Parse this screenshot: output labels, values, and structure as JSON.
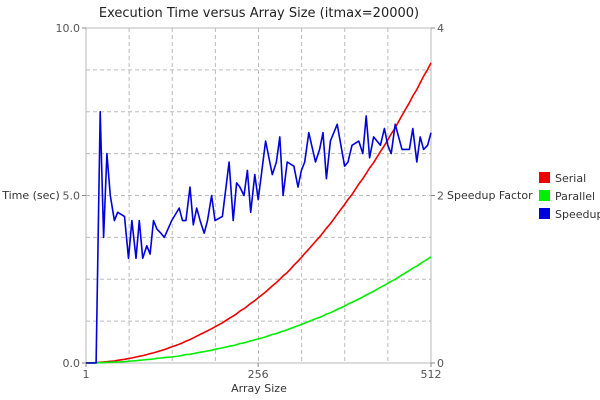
{
  "chart_data": {
    "type": "line",
    "title": "Execution Time versus Array Size (itmax=20000)",
    "xlabel": "Array Size",
    "ylabel_left": "Time (sec)",
    "ylabel_right": "Speedup Factor",
    "xlim": [
      1,
      512
    ],
    "ylim_left": [
      0,
      10
    ],
    "ylim_right": [
      0,
      4
    ],
    "x_ticks": [
      "1",
      "256",
      "512"
    ],
    "y_ticks_left": [
      "0.0",
      "5.0",
      "10.0"
    ],
    "y_ticks_right": [
      "0",
      "2",
      "4"
    ],
    "grid": true,
    "legend_position": "right",
    "x": [
      1,
      16,
      22,
      27,
      32,
      37,
      43,
      48,
      58,
      64,
      69,
      75,
      80,
      85,
      91,
      96,
      101,
      106,
      112,
      117,
      128,
      139,
      144,
      149,
      155,
      160,
      165,
      170,
      176,
      181,
      187,
      192,
      203,
      213,
      219,
      224,
      229,
      235,
      240,
      245,
      251,
      256,
      267,
      277,
      283,
      288,
      293,
      299,
      309,
      315,
      320,
      325,
      331,
      341,
      347,
      352,
      357,
      363,
      373,
      384,
      389,
      395,
      405,
      411,
      416,
      421,
      427,
      437,
      443,
      448,
      453,
      459,
      469,
      480,
      485,
      491,
      496,
      501,
      507,
      512
    ],
    "series": [
      {
        "name": "Serial",
        "color": "#ee0000",
        "axis": "left",
        "values": [
          0.0,
          0.01,
          0.02,
          0.03,
          0.04,
          0.05,
          0.06,
          0.08,
          0.11,
          0.13,
          0.15,
          0.18,
          0.2,
          0.22,
          0.25,
          0.28,
          0.3,
          0.33,
          0.37,
          0.4,
          0.48,
          0.56,
          0.6,
          0.65,
          0.7,
          0.75,
          0.8,
          0.85,
          0.91,
          0.96,
          1.02,
          1.08,
          1.2,
          1.33,
          1.4,
          1.47,
          1.55,
          1.62,
          1.7,
          1.78,
          1.86,
          1.95,
          2.12,
          2.3,
          2.4,
          2.5,
          2.6,
          2.7,
          2.92,
          3.04,
          3.15,
          3.27,
          3.4,
          3.63,
          3.76,
          3.89,
          4.02,
          4.16,
          4.44,
          4.73,
          4.88,
          5.03,
          5.34,
          5.5,
          5.66,
          5.82,
          5.98,
          6.31,
          6.49,
          6.66,
          6.84,
          7.02,
          7.39,
          7.77,
          7.97,
          8.16,
          8.36,
          8.56,
          8.76,
          8.96
        ]
      },
      {
        "name": "Parallel",
        "color": "#00ee00",
        "axis": "left",
        "values": [
          0.0,
          0.0,
          0.01,
          0.01,
          0.02,
          0.02,
          0.03,
          0.03,
          0.04,
          0.05,
          0.06,
          0.07,
          0.08,
          0.09,
          0.1,
          0.11,
          0.12,
          0.14,
          0.15,
          0.16,
          0.18,
          0.21,
          0.23,
          0.25,
          0.26,
          0.28,
          0.3,
          0.32,
          0.34,
          0.36,
          0.38,
          0.41,
          0.45,
          0.5,
          0.52,
          0.55,
          0.58,
          0.6,
          0.63,
          0.66,
          0.69,
          0.72,
          0.78,
          0.85,
          0.88,
          0.92,
          0.95,
          0.99,
          1.07,
          1.11,
          1.15,
          1.19,
          1.24,
          1.32,
          1.36,
          1.41,
          1.46,
          1.5,
          1.6,
          1.7,
          1.76,
          1.81,
          1.91,
          1.97,
          2.03,
          2.08,
          2.14,
          2.26,
          2.32,
          2.38,
          2.44,
          2.5,
          2.63,
          2.76,
          2.83,
          2.89,
          2.96,
          3.03,
          3.1,
          3.17
        ]
      },
      {
        "name": "Speedup",
        "color": "#0000dd",
        "axis": "right",
        "values": [
          0.0,
          0.0,
          3.0,
          1.5,
          2.5,
          2.0,
          1.7,
          1.8,
          1.75,
          1.25,
          1.7,
          1.25,
          1.7,
          1.25,
          1.4,
          1.3,
          1.7,
          1.6,
          1.55,
          1.5,
          1.7,
          1.85,
          1.7,
          1.7,
          2.1,
          1.65,
          1.85,
          1.7,
          1.55,
          1.7,
          2.0,
          1.7,
          1.75,
          2.4,
          1.7,
          2.15,
          2.1,
          2.0,
          2.3,
          1.8,
          2.25,
          1.95,
          2.65,
          2.25,
          2.4,
          2.7,
          2.0,
          2.4,
          2.35,
          2.1,
          2.3,
          2.4,
          2.75,
          2.4,
          2.55,
          2.75,
          2.2,
          2.65,
          2.85,
          2.35,
          2.4,
          2.6,
          2.65,
          2.5,
          2.95,
          2.45,
          2.7,
          2.6,
          2.8,
          2.6,
          2.5,
          2.85,
          2.55,
          2.55,
          2.8,
          2.4,
          2.7,
          2.55,
          2.6,
          2.75
        ]
      }
    ]
  }
}
